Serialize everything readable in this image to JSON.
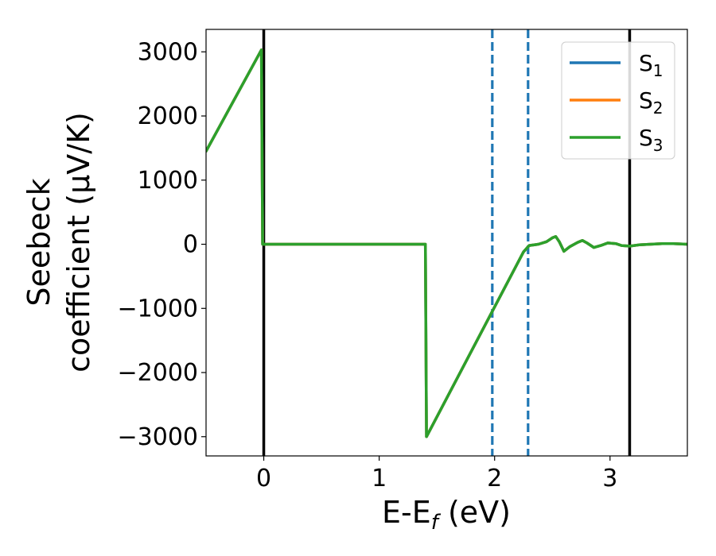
{
  "chart_data": {
    "type": "line",
    "xlabel": "E-E_f (eV)",
    "xlabel_parts": {
      "main": "E-E",
      "sub": "f",
      "tail": " (eV)"
    },
    "ylabel_line1": "Seebeck",
    "ylabel_line2": "coefficient  (μV/K)",
    "xlim": [
      -0.5,
      3.67
    ],
    "ylim": [
      -3300,
      3350
    ],
    "xticks": [
      0,
      1,
      2,
      3
    ],
    "xtick_labels": [
      "0",
      "1",
      "2",
      "3"
    ],
    "yticks": [
      -3000,
      -2000,
      -1000,
      0,
      1000,
      2000,
      3000
    ],
    "ytick_labels": [
      "−3000",
      "−2000",
      "−1000",
      "0",
      "1000",
      "2000",
      "3000"
    ],
    "grid": false,
    "legend_position": "upper-right",
    "vlines": [
      {
        "x": 0.0,
        "style": "solid",
        "color": "#000000"
      },
      {
        "x": 1.98,
        "style": "dashed",
        "color": "#1f77b4"
      },
      {
        "x": 2.29,
        "style": "dashed",
        "color": "#1f77b4"
      },
      {
        "x": 3.17,
        "style": "solid",
        "color": "#000000"
      }
    ],
    "series": [
      {
        "name": "S1",
        "label_main": "S",
        "label_sub": "1",
        "color": "#1f77b4",
        "x": [
          -0.5,
          -0.02,
          -0.01,
          1.4,
          1.41,
          2.25,
          2.3,
          2.38,
          2.45,
          2.5,
          2.53,
          2.56,
          2.6,
          2.65,
          2.72,
          2.76,
          2.8,
          2.86,
          2.92,
          2.98,
          3.05,
          3.1,
          3.17,
          3.25,
          3.35,
          3.45,
          3.55,
          3.67
        ],
        "y": [
          1450,
          3030,
          0,
          0,
          -3000,
          -120,
          -20,
          0,
          40,
          100,
          120,
          40,
          -110,
          -40,
          30,
          60,
          20,
          -50,
          -20,
          20,
          10,
          -20,
          -30,
          -10,
          0,
          10,
          10,
          0
        ]
      },
      {
        "name": "S2",
        "label_main": "S",
        "label_sub": "2",
        "color": "#ff7f0e",
        "x": [
          -0.5,
          -0.02,
          -0.01,
          1.4,
          1.41,
          2.25,
          2.3,
          2.38,
          2.45,
          2.5,
          2.53,
          2.56,
          2.6,
          2.65,
          2.72,
          2.76,
          2.8,
          2.86,
          2.92,
          2.98,
          3.05,
          3.1,
          3.17,
          3.25,
          3.35,
          3.45,
          3.55,
          3.67
        ],
        "y": [
          1450,
          3030,
          0,
          0,
          -3000,
          -120,
          -20,
          0,
          40,
          100,
          120,
          40,
          -110,
          -40,
          30,
          60,
          20,
          -50,
          -20,
          20,
          10,
          -20,
          -30,
          -10,
          0,
          10,
          10,
          0
        ]
      },
      {
        "name": "S3",
        "label_main": "S",
        "label_sub": "3",
        "color": "#2ca02c",
        "x": [
          -0.5,
          -0.02,
          -0.01,
          1.4,
          1.41,
          2.25,
          2.3,
          2.38,
          2.45,
          2.5,
          2.53,
          2.56,
          2.6,
          2.65,
          2.72,
          2.76,
          2.8,
          2.86,
          2.92,
          2.98,
          3.05,
          3.1,
          3.17,
          3.25,
          3.35,
          3.45,
          3.55,
          3.67
        ],
        "y": [
          1450,
          3030,
          0,
          0,
          -3000,
          -120,
          -20,
          0,
          40,
          100,
          120,
          40,
          -110,
          -40,
          30,
          60,
          20,
          -50,
          -20,
          20,
          10,
          -20,
          -30,
          -10,
          0,
          10,
          10,
          0
        ]
      }
    ]
  }
}
